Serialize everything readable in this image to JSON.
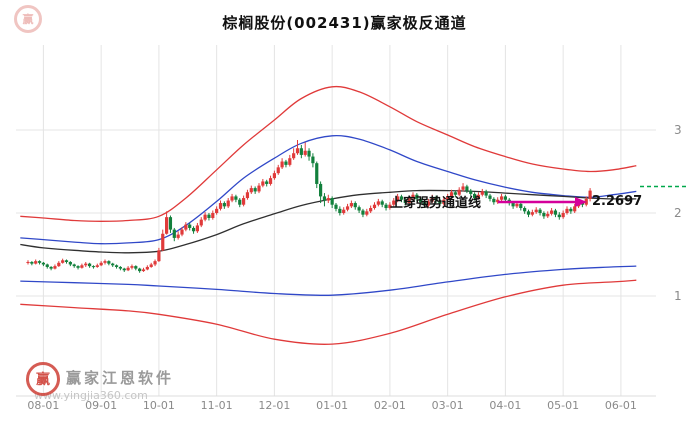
{
  "title": "棕榈股份(002431)赢家极反通道",
  "annotation": {
    "text": "上穿强势通道线",
    "price_label": "2.2697",
    "arrow_color": "#d4009a"
  },
  "watermark": {
    "brand": "赢家江恩软件",
    "url": "www.yingjia360.com",
    "logo_char": "赢"
  },
  "chart_data": {
    "type": "candlestick",
    "title": "棕榈股份(002431)赢家极反通道",
    "stock_name": "棕榈股份",
    "symbol": "002431",
    "x_labels": [
      "08-01",
      "09-01",
      "10-01",
      "11-01",
      "12-01",
      "01-01",
      "02-01",
      "03-01",
      "04-01",
      "05-01",
      "06-01"
    ],
    "y_ticks": [
      1,
      2,
      3
    ],
    "ylim": [
      0.3,
      3.8
    ],
    "up_color": "#e03a3a",
    "down_color": "#12803c",
    "last_close": 2.2697,
    "candles": [
      [
        1.4,
        1.41,
        1.38,
        1.43
      ],
      [
        1.41,
        1.39,
        1.37,
        1.42
      ],
      [
        1.39,
        1.42,
        1.38,
        1.44
      ],
      [
        1.42,
        1.4,
        1.38,
        1.43
      ],
      [
        1.4,
        1.38,
        1.36,
        1.41
      ],
      [
        1.38,
        1.35,
        1.33,
        1.39
      ],
      [
        1.35,
        1.33,
        1.31,
        1.36
      ],
      [
        1.33,
        1.36,
        1.32,
        1.38
      ],
      [
        1.36,
        1.4,
        1.35,
        1.42
      ],
      [
        1.4,
        1.43,
        1.39,
        1.45
      ],
      [
        1.43,
        1.41,
        1.39,
        1.44
      ],
      [
        1.41,
        1.38,
        1.36,
        1.42
      ],
      [
        1.38,
        1.36,
        1.34,
        1.39
      ],
      [
        1.36,
        1.34,
        1.32,
        1.37
      ],
      [
        1.34,
        1.37,
        1.33,
        1.39
      ],
      [
        1.37,
        1.39,
        1.35,
        1.41
      ],
      [
        1.39,
        1.36,
        1.34,
        1.4
      ],
      [
        1.36,
        1.35,
        1.33,
        1.37
      ],
      [
        1.35,
        1.37,
        1.34,
        1.39
      ],
      [
        1.37,
        1.4,
        1.36,
        1.42
      ],
      [
        1.4,
        1.42,
        1.38,
        1.44
      ],
      [
        1.42,
        1.39,
        1.37,
        1.43
      ],
      [
        1.39,
        1.37,
        1.35,
        1.4
      ],
      [
        1.37,
        1.35,
        1.33,
        1.38
      ],
      [
        1.35,
        1.33,
        1.31,
        1.36
      ],
      [
        1.33,
        1.31,
        1.29,
        1.34
      ],
      [
        1.31,
        1.34,
        1.3,
        1.36
      ],
      [
        1.34,
        1.36,
        1.32,
        1.38
      ],
      [
        1.36,
        1.33,
        1.31,
        1.37
      ],
      [
        1.33,
        1.3,
        1.28,
        1.34
      ],
      [
        1.3,
        1.32,
        1.29,
        1.34
      ],
      [
        1.32,
        1.35,
        1.31,
        1.37
      ],
      [
        1.35,
        1.38,
        1.34,
        1.4
      ],
      [
        1.38,
        1.42,
        1.36,
        1.44
      ],
      [
        1.42,
        1.55,
        1.41,
        1.58
      ],
      [
        1.55,
        1.75,
        1.54,
        1.8
      ],
      [
        1.75,
        1.95,
        1.74,
        2.02
      ],
      [
        1.95,
        1.8,
        1.76,
        1.97
      ],
      [
        1.8,
        1.7,
        1.66,
        1.82
      ],
      [
        1.7,
        1.74,
        1.68,
        1.78
      ],
      [
        1.74,
        1.8,
        1.72,
        1.83
      ],
      [
        1.8,
        1.86,
        1.78,
        1.89
      ],
      [
        1.86,
        1.82,
        1.79,
        1.88
      ],
      [
        1.82,
        1.78,
        1.75,
        1.84
      ],
      [
        1.78,
        1.85,
        1.76,
        1.88
      ],
      [
        1.85,
        1.92,
        1.83,
        1.95
      ],
      [
        1.92,
        1.98,
        1.9,
        2.01
      ],
      [
        1.98,
        1.94,
        1.91,
        2.0
      ],
      [
        1.94,
        2.0,
        1.92,
        2.03
      ],
      [
        2.0,
        2.05,
        1.98,
        2.08
      ],
      [
        2.05,
        2.12,
        2.03,
        2.15
      ],
      [
        2.12,
        2.08,
        2.05,
        2.14
      ],
      [
        2.08,
        2.15,
        2.06,
        2.18
      ],
      [
        2.15,
        2.2,
        2.13,
        2.23
      ],
      [
        2.2,
        2.16,
        2.13,
        2.22
      ],
      [
        2.16,
        2.1,
        2.07,
        2.18
      ],
      [
        2.1,
        2.18,
        2.08,
        2.21
      ],
      [
        2.18,
        2.25,
        2.16,
        2.28
      ],
      [
        2.25,
        2.3,
        2.23,
        2.33
      ],
      [
        2.3,
        2.26,
        2.23,
        2.32
      ],
      [
        2.26,
        2.33,
        2.24,
        2.36
      ],
      [
        2.33,
        2.38,
        2.31,
        2.41
      ],
      [
        2.38,
        2.35,
        2.32,
        2.4
      ],
      [
        2.35,
        2.42,
        2.33,
        2.45
      ],
      [
        2.42,
        2.48,
        2.4,
        2.51
      ],
      [
        2.48,
        2.55,
        2.46,
        2.58
      ],
      [
        2.55,
        2.62,
        2.53,
        2.66
      ],
      [
        2.62,
        2.58,
        2.55,
        2.64
      ],
      [
        2.58,
        2.66,
        2.56,
        2.7
      ],
      [
        2.66,
        2.72,
        2.64,
        2.78
      ],
      [
        2.72,
        2.78,
        2.7,
        2.88
      ],
      [
        2.78,
        2.7,
        2.66,
        2.82
      ],
      [
        2.7,
        2.75,
        2.68,
        2.85
      ],
      [
        2.75,
        2.68,
        2.63,
        2.78
      ],
      [
        2.68,
        2.6,
        2.55,
        2.72
      ],
      [
        2.6,
        2.35,
        2.3,
        2.62
      ],
      [
        2.35,
        2.2,
        2.12,
        2.38
      ],
      [
        2.2,
        2.15,
        2.08,
        2.24
      ],
      [
        2.15,
        2.18,
        2.12,
        2.22
      ],
      [
        2.18,
        2.1,
        2.06,
        2.2
      ],
      [
        2.1,
        2.05,
        2.02,
        2.12
      ],
      [
        2.05,
        2.0,
        1.97,
        2.08
      ],
      [
        2.0,
        2.04,
        1.98,
        2.07
      ],
      [
        2.04,
        2.08,
        2.02,
        2.11
      ],
      [
        2.08,
        2.12,
        2.06,
        2.15
      ],
      [
        2.12,
        2.07,
        2.04,
        2.14
      ],
      [
        2.07,
        2.03,
        2.0,
        2.09
      ],
      [
        2.03,
        1.98,
        1.95,
        2.05
      ],
      [
        1.98,
        2.02,
        1.96,
        2.05
      ],
      [
        2.02,
        2.06,
        2.0,
        2.09
      ],
      [
        2.06,
        2.1,
        2.04,
        2.13
      ],
      [
        2.1,
        2.14,
        2.08,
        2.17
      ],
      [
        2.14,
        2.1,
        2.07,
        2.16
      ],
      [
        2.1,
        2.06,
        2.03,
        2.12
      ],
      [
        2.06,
        2.1,
        2.04,
        2.13
      ],
      [
        2.1,
        2.15,
        2.08,
        2.18
      ],
      [
        2.15,
        2.2,
        2.13,
        2.23
      ],
      [
        2.2,
        2.16,
        2.13,
        2.22
      ],
      [
        2.16,
        2.12,
        2.09,
        2.18
      ],
      [
        2.12,
        2.18,
        2.1,
        2.21
      ],
      [
        2.18,
        2.22,
        2.16,
        2.25
      ],
      [
        2.22,
        2.17,
        2.14,
        2.24
      ],
      [
        2.17,
        2.13,
        2.1,
        2.19
      ],
      [
        2.13,
        2.09,
        2.06,
        2.15
      ],
      [
        2.09,
        2.14,
        2.07,
        2.17
      ],
      [
        2.14,
        2.19,
        2.12,
        2.22
      ],
      [
        2.19,
        2.15,
        2.12,
        2.21
      ],
      [
        2.15,
        2.11,
        2.08,
        2.17
      ],
      [
        2.11,
        2.16,
        2.09,
        2.19
      ],
      [
        2.16,
        2.2,
        2.14,
        2.23
      ],
      [
        2.2,
        2.25,
        2.18,
        2.28
      ],
      [
        2.25,
        2.22,
        2.19,
        2.27
      ],
      [
        2.22,
        2.28,
        2.2,
        2.31
      ],
      [
        2.28,
        2.32,
        2.26,
        2.36
      ],
      [
        2.32,
        2.27,
        2.24,
        2.34
      ],
      [
        2.27,
        2.23,
        2.2,
        2.29
      ],
      [
        2.23,
        2.18,
        2.15,
        2.25
      ],
      [
        2.18,
        2.22,
        2.16,
        2.25
      ],
      [
        2.22,
        2.26,
        2.2,
        2.29
      ],
      [
        2.26,
        2.21,
        2.18,
        2.28
      ],
      [
        2.21,
        2.17,
        2.14,
        2.23
      ],
      [
        2.17,
        2.13,
        2.1,
        2.19
      ],
      [
        2.13,
        2.16,
        2.11,
        2.19
      ],
      [
        2.16,
        2.2,
        2.14,
        2.23
      ],
      [
        2.2,
        2.16,
        2.13,
        2.22
      ],
      [
        2.16,
        2.12,
        2.09,
        2.18
      ],
      [
        2.12,
        2.08,
        2.05,
        2.14
      ],
      [
        2.08,
        2.11,
        2.06,
        2.14
      ],
      [
        2.11,
        2.06,
        2.03,
        2.13
      ],
      [
        2.06,
        2.02,
        1.99,
        2.08
      ],
      [
        2.02,
        1.98,
        1.95,
        2.04
      ],
      [
        1.98,
        2.01,
        1.96,
        2.04
      ],
      [
        2.01,
        2.04,
        1.99,
        2.07
      ],
      [
        2.04,
        2.0,
        1.97,
        2.06
      ],
      [
        2.0,
        1.96,
        1.93,
        2.02
      ],
      [
        1.96,
        1.99,
        1.94,
        2.02
      ],
      [
        1.99,
        2.03,
        1.97,
        2.06
      ],
      [
        2.03,
        1.98,
        1.95,
        2.05
      ],
      [
        1.98,
        1.95,
        1.92,
        2.01
      ],
      [
        1.95,
        2.0,
        1.93,
        2.03
      ],
      [
        2.0,
        2.05,
        1.98,
        2.08
      ],
      [
        2.05,
        2.02,
        1.99,
        2.07
      ],
      [
        2.02,
        2.08,
        2.0,
        2.11
      ],
      [
        2.08,
        2.13,
        2.06,
        2.16
      ],
      [
        2.13,
        2.1,
        2.07,
        2.15
      ],
      [
        2.1,
        2.17,
        2.08,
        2.2
      ],
      [
        2.17,
        2.2697,
        2.14,
        2.3
      ]
    ],
    "channel_lines": [
      {
        "name": "upper-outer-channel",
        "color": "#e03a3a",
        "width": 1.3,
        "points": [
          [
            -2,
            1.96
          ],
          [
            4,
            1.94
          ],
          [
            12,
            1.91
          ],
          [
            19,
            1.9
          ],
          [
            26,
            1.91
          ],
          [
            34,
            1.96
          ],
          [
            41,
            2.18
          ],
          [
            49,
            2.52
          ],
          [
            56,
            2.82
          ],
          [
            64,
            3.12
          ],
          [
            71,
            3.38
          ],
          [
            79,
            3.52
          ],
          [
            86,
            3.46
          ],
          [
            94,
            3.28
          ],
          [
            101,
            3.1
          ],
          [
            109,
            2.94
          ],
          [
            116,
            2.8
          ],
          [
            124,
            2.68
          ],
          [
            131,
            2.59
          ],
          [
            139,
            2.53
          ],
          [
            146,
            2.5
          ],
          [
            152,
            2.52
          ],
          [
            158,
            2.57
          ]
        ]
      },
      {
        "name": "upper-inner-channel",
        "color": "#3048c8",
        "width": 1.3,
        "points": [
          [
            -2,
            1.7
          ],
          [
            4,
            1.68
          ],
          [
            12,
            1.65
          ],
          [
            19,
            1.63
          ],
          [
            26,
            1.64
          ],
          [
            34,
            1.68
          ],
          [
            41,
            1.85
          ],
          [
            49,
            2.14
          ],
          [
            56,
            2.42
          ],
          [
            64,
            2.66
          ],
          [
            71,
            2.84
          ],
          [
            79,
            2.93
          ],
          [
            86,
            2.89
          ],
          [
            94,
            2.76
          ],
          [
            101,
            2.62
          ],
          [
            109,
            2.5
          ],
          [
            116,
            2.4
          ],
          [
            124,
            2.31
          ],
          [
            131,
            2.25
          ],
          [
            139,
            2.21
          ],
          [
            146,
            2.19
          ],
          [
            152,
            2.22
          ],
          [
            158,
            2.26
          ]
        ]
      },
      {
        "name": "middle-channel",
        "color": "#303030",
        "width": 1.3,
        "points": [
          [
            -2,
            1.62
          ],
          [
            4,
            1.58
          ],
          [
            12,
            1.55
          ],
          [
            19,
            1.53
          ],
          [
            26,
            1.52
          ],
          [
            34,
            1.54
          ],
          [
            41,
            1.62
          ],
          [
            49,
            1.74
          ],
          [
            56,
            1.87
          ],
          [
            64,
            1.99
          ],
          [
            71,
            2.09
          ],
          [
            79,
            2.17
          ],
          [
            86,
            2.22
          ],
          [
            94,
            2.25
          ],
          [
            101,
            2.27
          ],
          [
            109,
            2.27
          ],
          [
            116,
            2.26
          ],
          [
            124,
            2.24
          ],
          [
            131,
            2.22
          ],
          [
            139,
            2.2
          ],
          [
            146,
            2.18
          ],
          [
            152,
            2.17
          ],
          [
            158,
            2.17
          ]
        ]
      },
      {
        "name": "lower-inner-channel",
        "color": "#3048c8",
        "width": 1.3,
        "points": [
          [
            -2,
            1.18
          ],
          [
            12,
            1.16
          ],
          [
            26,
            1.14
          ],
          [
            34,
            1.12
          ],
          [
            49,
            1.08
          ],
          [
            64,
            1.03
          ],
          [
            79,
            1.01
          ],
          [
            94,
            1.07
          ],
          [
            109,
            1.17
          ],
          [
            124,
            1.26
          ],
          [
            139,
            1.32
          ],
          [
            152,
            1.35
          ],
          [
            158,
            1.36
          ]
        ]
      },
      {
        "name": "lower-outer-channel",
        "color": "#e03a3a",
        "width": 1.3,
        "points": [
          [
            -2,
            0.9
          ],
          [
            12,
            0.86
          ],
          [
            26,
            0.82
          ],
          [
            34,
            0.78
          ],
          [
            49,
            0.66
          ],
          [
            64,
            0.48
          ],
          [
            79,
            0.42
          ],
          [
            94,
            0.55
          ],
          [
            109,
            0.78
          ],
          [
            124,
            0.99
          ],
          [
            139,
            1.13
          ],
          [
            152,
            1.17
          ],
          [
            158,
            1.19
          ]
        ]
      }
    ],
    "projection_level": {
      "price": 2.32,
      "color": "#00a84a"
    }
  }
}
